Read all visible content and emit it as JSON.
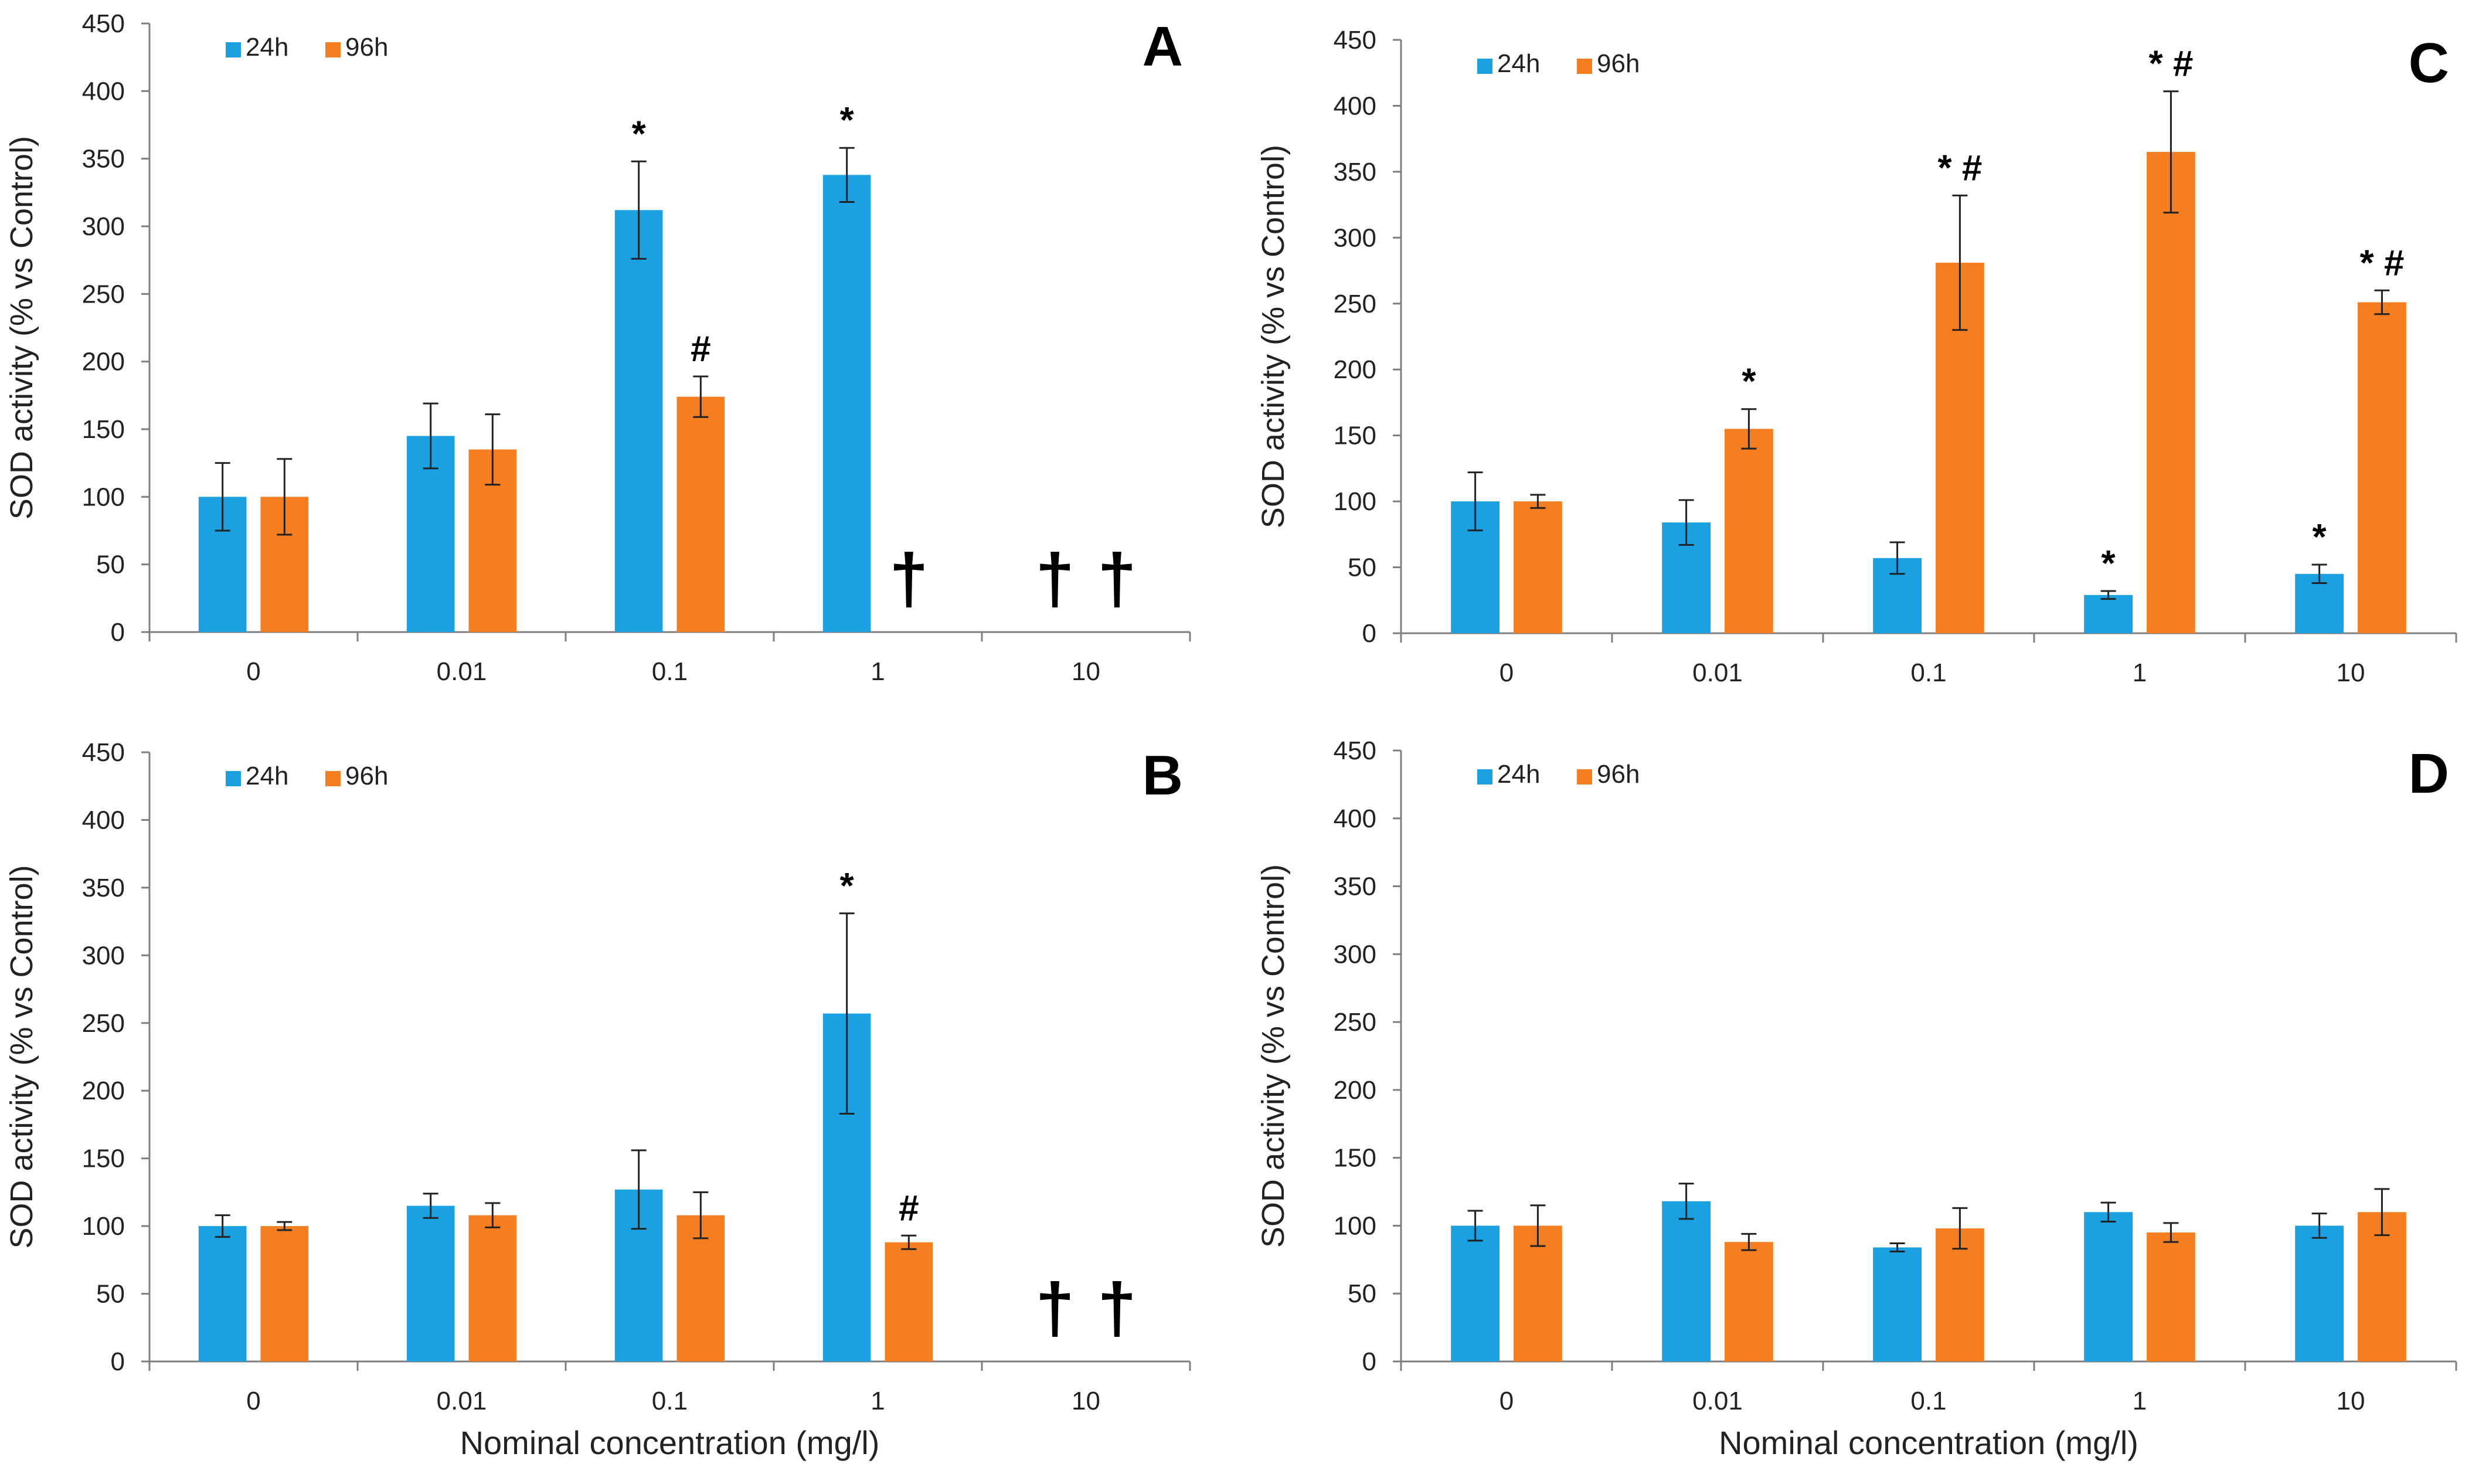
{
  "colors": {
    "series_24h": "#1BA1E2",
    "series_96h": "#F57E20",
    "axis": "#7f7f7f",
    "text": "#222222"
  },
  "chart_data": [
    {
      "type": "bar",
      "panel_label": "A",
      "ylabel": "SOD activity (% vs Control)",
      "xlabel": "",
      "ylim": [
        0,
        450
      ],
      "yticks": [
        0,
        50,
        100,
        150,
        200,
        250,
        300,
        350,
        400,
        450
      ],
      "categories": [
        "0",
        "0.01",
        "0.1",
        "1",
        "10"
      ],
      "legend": [
        "24h",
        "96h"
      ],
      "series": [
        {
          "name": "24h",
          "values": [
            100,
            145,
            312,
            338,
            null
          ],
          "errors": [
            25,
            24,
            36,
            20,
            null
          ],
          "annotations": [
            "",
            "",
            "*",
            "*",
            "†"
          ]
        },
        {
          "name": "96h",
          "values": [
            100,
            135,
            174,
            null,
            null
          ],
          "errors": [
            28,
            26,
            15,
            null,
            null
          ],
          "annotations": [
            "",
            "",
            "#",
            "†",
            "†"
          ]
        }
      ]
    },
    {
      "type": "bar",
      "panel_label": "B",
      "ylabel": "SOD activity (% vs Control)",
      "xlabel": "Nominal concentration (mg/l)",
      "ylim": [
        0,
        450
      ],
      "yticks": [
        0,
        50,
        100,
        150,
        200,
        250,
        300,
        350,
        400,
        450
      ],
      "categories": [
        "0",
        "0.01",
        "0.1",
        "1",
        "10"
      ],
      "legend": [
        "24h",
        "96h"
      ],
      "series": [
        {
          "name": "24h",
          "values": [
            100,
            115,
            127,
            257,
            null
          ],
          "errors": [
            8,
            9,
            29,
            74,
            null
          ],
          "annotations": [
            "",
            "",
            "",
            "*",
            "†"
          ]
        },
        {
          "name": "96h",
          "values": [
            100,
            108,
            108,
            88,
            null
          ],
          "errors": [
            3,
            9,
            17,
            5,
            null
          ],
          "annotations": [
            "",
            "",
            "",
            "#",
            "†"
          ]
        }
      ]
    },
    {
      "type": "bar",
      "panel_label": "C",
      "ylabel": "SOD activity (% vs Control)",
      "xlabel": "",
      "ylim": [
        0,
        450
      ],
      "yticks": [
        0,
        50,
        100,
        150,
        200,
        250,
        300,
        350,
        400,
        450
      ],
      "categories": [
        "0",
        "0.01",
        "0.1",
        "1",
        "10"
      ],
      "legend": [
        "24h",
        "96h"
      ],
      "series": [
        {
          "name": "24h",
          "values": [
            100,
            84,
            57,
            29,
            45
          ],
          "errors": [
            22,
            17,
            12,
            3,
            7
          ],
          "annotations": [
            "",
            "",
            "",
            "*",
            "*"
          ]
        },
        {
          "name": "96h",
          "values": [
            100,
            155,
            281,
            365,
            251
          ],
          "errors": [
            5,
            15,
            51,
            46,
            9
          ],
          "annotations": [
            "",
            "*",
            "* #",
            "* #",
            "* #"
          ]
        }
      ]
    },
    {
      "type": "bar",
      "panel_label": "D",
      "ylabel": "SOD activity (% vs Control)",
      "xlabel": "Nominal concentration (mg/l)",
      "ylim": [
        0,
        450
      ],
      "yticks": [
        0,
        50,
        100,
        150,
        200,
        250,
        300,
        350,
        400,
        450
      ],
      "categories": [
        "0",
        "0.01",
        "0.1",
        "1",
        "10"
      ],
      "legend": [
        "24h",
        "96h"
      ],
      "series": [
        {
          "name": "24h",
          "values": [
            100,
            118,
            84,
            110,
            100
          ],
          "errors": [
            11,
            13,
            3,
            7,
            9
          ],
          "annotations": [
            "",
            "",
            "",
            "",
            ""
          ]
        },
        {
          "name": "96h",
          "values": [
            100,
            88,
            98,
            95,
            110
          ],
          "errors": [
            15,
            6,
            15,
            7,
            17
          ],
          "annotations": [
            "",
            "",
            "",
            "",
            ""
          ]
        }
      ]
    }
  ]
}
